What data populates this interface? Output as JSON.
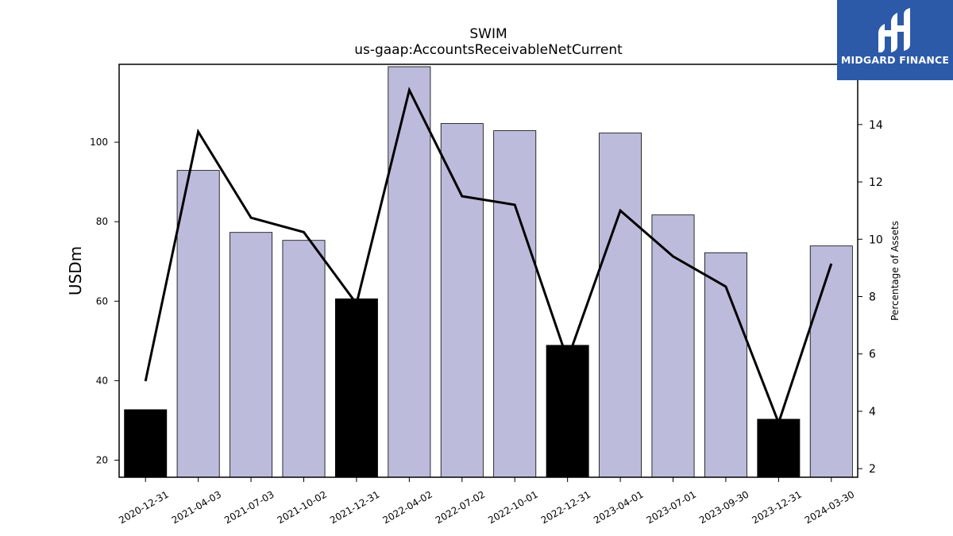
{
  "chart_data": {
    "type": "bar",
    "title": "SWIM",
    "subtitle": "us-gaap:AccountsReceivableNetCurrent",
    "ylabel": "USDm",
    "y2label": "Percentage of Assets",
    "categories": [
      "2020-12-31",
      "2021-04-03",
      "2021-07-03",
      "2021-10-02",
      "2021-12-31",
      "2022-04-02",
      "2022-07-02",
      "2022-10-01",
      "2022-12-31",
      "2023-04-01",
      "2023-07-01",
      "2023-09-30",
      "2023-12-31",
      "2024-03-30"
    ],
    "series": [
      {
        "values": [
          32.7,
          92.9,
          77.3,
          75.3,
          60.6,
          119.0,
          104.7,
          102.9,
          48.9,
          102.3,
          81.7,
          72.2,
          30.3,
          73.9
        ],
        "highlight": [
          true,
          false,
          false,
          false,
          true,
          false,
          false,
          false,
          true,
          false,
          false,
          false,
          true,
          false
        ]
      },
      {
        "axis": "right",
        "values": [
          5.05,
          13.75,
          10.75,
          10.25,
          7.75,
          15.2,
          11.5,
          11.2,
          5.8,
          11.0,
          9.4,
          8.35,
          3.6,
          9.15
        ]
      }
    ],
    "ylim": [
      15.7,
      119.6
    ],
    "y2lim": [
      1.7,
      16.1
    ],
    "yticks": [
      20,
      40,
      60,
      80,
      100
    ],
    "y2ticks": [
      2,
      4,
      6,
      8,
      10,
      12,
      14
    ],
    "grid": false,
    "colors": {
      "bar": "#bdbbdb",
      "highlight_bar": "#000000",
      "line": "#000000"
    }
  },
  "logo": {
    "text": "MIDGARD FINANCE",
    "background": "#2c5aa8"
  }
}
